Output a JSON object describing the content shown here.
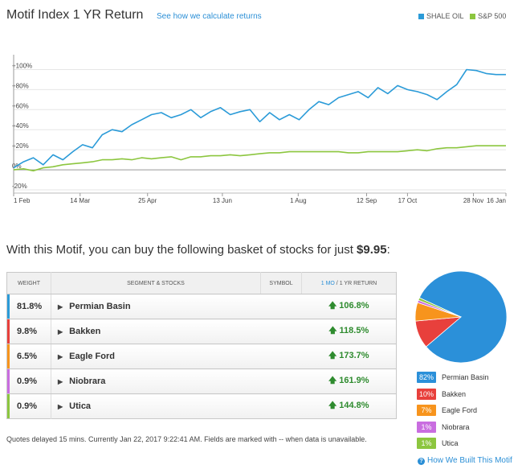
{
  "header": {
    "title": "Motif Index 1 YR Return",
    "calc_link": "See how we calculate returns",
    "legend": [
      {
        "label": "SHALE OIL",
        "color": "#2b9bd8"
      },
      {
        "label": "S&P 500",
        "color": "#8cc63f"
      }
    ]
  },
  "chart_data": {
    "type": "line",
    "title": "Motif Index 1 YR Return",
    "xlabel": "",
    "ylabel": "",
    "ylim": [
      -20,
      110
    ],
    "y_ticks": [
      "+100%",
      "+80%",
      "+60%",
      "+40%",
      "+20%",
      "0%",
      "-20%"
    ],
    "y_tick_values": [
      100,
      80,
      60,
      40,
      20,
      0,
      -20
    ],
    "x_ticks": [
      "1 Feb",
      "14 Mar",
      "25 Apr",
      "13 Jun",
      "1 Aug",
      "12 Sep",
      "17 Oct",
      "28 Nov",
      "16 Jan"
    ],
    "x_tick_pos": [
      0,
      0.135,
      0.272,
      0.424,
      0.578,
      0.717,
      0.8,
      0.934,
      1.0
    ],
    "x": [
      0,
      0.02,
      0.04,
      0.06,
      0.08,
      0.1,
      0.12,
      0.14,
      0.16,
      0.18,
      0.2,
      0.22,
      0.24,
      0.26,
      0.28,
      0.3,
      0.32,
      0.34,
      0.36,
      0.38,
      0.4,
      0.42,
      0.44,
      0.46,
      0.48,
      0.5,
      0.52,
      0.54,
      0.56,
      0.58,
      0.6,
      0.62,
      0.64,
      0.66,
      0.68,
      0.7,
      0.72,
      0.74,
      0.76,
      0.78,
      0.8,
      0.82,
      0.84,
      0.86,
      0.88,
      0.9,
      0.92,
      0.94,
      0.96,
      0.98,
      1.0
    ],
    "series": [
      {
        "name": "SHALE OIL",
        "color": "#2b9bd8",
        "values": [
          2,
          8,
          12,
          5,
          15,
          10,
          18,
          25,
          22,
          35,
          40,
          38,
          45,
          50,
          55,
          57,
          52,
          55,
          60,
          52,
          58,
          62,
          55,
          58,
          60,
          48,
          57,
          50,
          55,
          50,
          60,
          68,
          65,
          72,
          75,
          78,
          72,
          82,
          76,
          84,
          80,
          78,
          75,
          70,
          78,
          85,
          100,
          99,
          96,
          95,
          95
        ]
      },
      {
        "name": "S&P 500",
        "color": "#8cc63f",
        "values": [
          0,
          1,
          -1,
          2,
          3,
          5,
          6,
          7,
          8,
          10,
          10,
          11,
          10,
          12,
          11,
          12,
          13,
          10,
          13,
          13,
          14,
          14,
          15,
          14,
          15,
          16,
          17,
          17,
          18,
          18,
          18,
          18,
          18,
          18,
          17,
          17,
          18,
          18,
          18,
          18,
          19,
          20,
          19,
          21,
          22,
          22,
          23,
          24,
          24,
          24,
          24
        ]
      }
    ]
  },
  "buy_line": {
    "text": "With this Motif, you can buy the following basket of stocks for just ",
    "price": "$9.95",
    "end": ":"
  },
  "table": {
    "headers": {
      "weight": "WEIGHT",
      "segment": "SEGMENT & STOCKS",
      "symbol": "SYMBOL",
      "ret_mo": "1 MO",
      "ret_rest": " / 1 YR RETURN"
    },
    "rows": [
      {
        "weight": "81.8%",
        "name": "Permian Basin",
        "symbol": "",
        "ret": "106.8%",
        "color": "#2b9bd8"
      },
      {
        "weight": "9.8%",
        "name": "Bakken",
        "symbol": "",
        "ret": "118.5%",
        "color": "#e8403c"
      },
      {
        "weight": "6.5%",
        "name": "Eagle Ford",
        "symbol": "",
        "ret": "173.7%",
        "color": "#f7941d"
      },
      {
        "weight": "0.9%",
        "name": "Niobrara",
        "symbol": "",
        "ret": "161.9%",
        "color": "#c96de0"
      },
      {
        "weight": "0.9%",
        "name": "Utica",
        "symbol": "",
        "ret": "144.8%",
        "color": "#8cc63f"
      }
    ]
  },
  "footnote": "Quotes delayed 15 mins. Currently Jan 22, 2017 9:22:41 AM. Fields are marked with -- when data is unavailable.",
  "pie": {
    "slices": [
      {
        "pct": "82%",
        "label": "Permian Basin",
        "value": 81.8,
        "color": "#2b90d9"
      },
      {
        "pct": "10%",
        "label": "Bakken",
        "value": 9.8,
        "color": "#e8403c"
      },
      {
        "pct": "7%",
        "label": "Eagle Ford",
        "value": 6.5,
        "color": "#f7941d"
      },
      {
        "pct": "1%",
        "label": "Niobrara",
        "value": 0.9,
        "color": "#c96de0"
      },
      {
        "pct": "1%",
        "label": "Utica",
        "value": 0.9,
        "color": "#8cc63f"
      }
    ]
  },
  "built_link": "How We Built This Motif"
}
